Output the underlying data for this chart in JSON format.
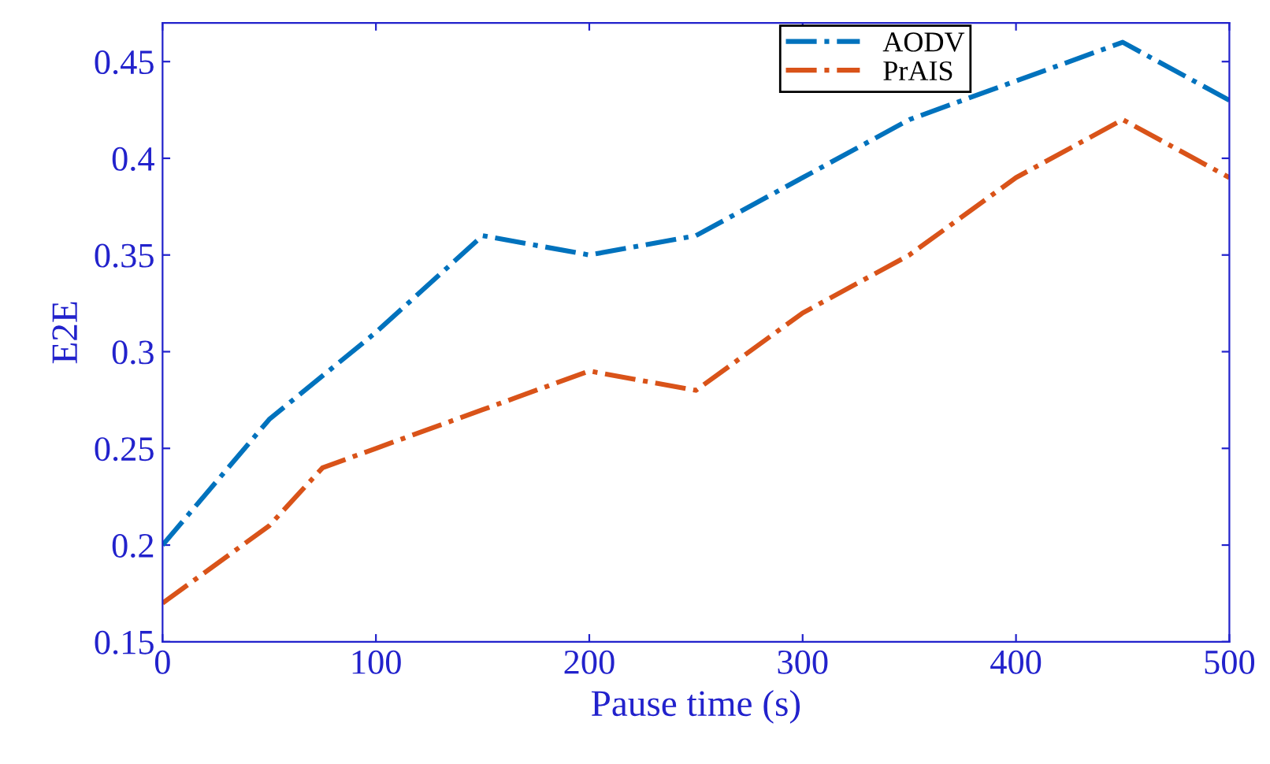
{
  "chart_data": {
    "type": "line",
    "xlabel": "Pause time (s)",
    "ylabel": "E2E",
    "series": [
      {
        "name": "AODV",
        "color": "#0072bd",
        "x": [
          0,
          50,
          100,
          150,
          200,
          250,
          300,
          350,
          400,
          450,
          500
        ],
        "values": [
          0.2,
          0.265,
          0.31,
          0.36,
          0.35,
          0.36,
          0.39,
          0.42,
          0.44,
          0.46,
          0.43
        ]
      },
      {
        "name": "PrAIS",
        "color": "#d95319",
        "x": [
          0,
          50,
          75,
          100,
          150,
          200,
          250,
          300,
          350,
          400,
          450,
          500
        ],
        "values": [
          0.17,
          0.21,
          0.24,
          0.25,
          0.27,
          0.29,
          0.28,
          0.32,
          0.35,
          0.39,
          0.42,
          0.39
        ]
      }
    ],
    "xlim": [
      0,
      500
    ],
    "xticks": [
      0,
      100,
      200,
      300,
      400,
      500
    ],
    "ylim": [
      0.15,
      0.47
    ],
    "yticks": [
      {
        "value": 0.15,
        "label": "0.15"
      },
      {
        "value": 0.2,
        "label": "0.2"
      },
      {
        "value": 0.25,
        "label": "0.25"
      },
      {
        "value": 0.3,
        "label": "0.3"
      },
      {
        "value": 0.35,
        "label": "0.35"
      },
      {
        "value": 0.4,
        "label": "0.4"
      },
      {
        "value": 0.45,
        "label": "0.45"
      }
    ],
    "grid": false,
    "legend": "top right",
    "marker": "none",
    "line_style": "dashed"
  }
}
